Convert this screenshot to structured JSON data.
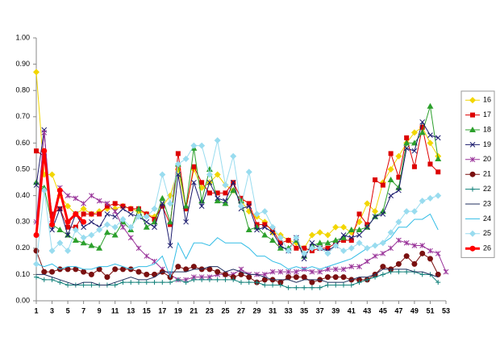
{
  "chart_data": {
    "type": "line",
    "x": [
      1,
      2,
      3,
      4,
      5,
      6,
      7,
      8,
      9,
      10,
      11,
      12,
      13,
      14,
      15,
      16,
      17,
      18,
      19,
      20,
      21,
      22,
      23,
      24,
      25,
      26,
      27,
      28,
      29,
      30,
      31,
      32,
      33,
      34,
      35,
      36,
      37,
      38,
      39,
      40,
      41,
      42,
      43,
      44,
      45,
      46,
      47,
      48,
      49,
      50,
      51,
      52,
      53
    ],
    "xlim": [
      1,
      53
    ],
    "xticks": [
      1,
      3,
      5,
      7,
      9,
      11,
      13,
      15,
      17,
      19,
      21,
      23,
      25,
      27,
      29,
      31,
      33,
      35,
      37,
      39,
      41,
      43,
      45,
      47,
      49,
      51,
      53
    ],
    "ylim": [
      0,
      1
    ],
    "yticks": [
      {
        "value": 0,
        "label": "0.00"
      },
      {
        "value": 0.1,
        "label": "0.10"
      },
      {
        "value": 0.2,
        "label": "0.20"
      },
      {
        "value": 0.3,
        "label": "0.30"
      },
      {
        "value": 0.4,
        "label": "0.40"
      },
      {
        "value": 0.5,
        "label": "0.50"
      },
      {
        "value": 0.6,
        "label": "0.60"
      },
      {
        "value": 0.7,
        "label": "0.70"
      },
      {
        "value": 0.8,
        "label": "0.80"
      },
      {
        "value": 0.9,
        "label": "0.90"
      },
      {
        "value": 1,
        "label": "1.00"
      }
    ],
    "legend": "right",
    "series": [
      {
        "name": "16",
        "color": "#f2d600",
        "marker": "diamond",
        "values": [
          0.87,
          0.48,
          0.48,
          0.4,
          0.36,
          0.33,
          0.35,
          0.33,
          0.34,
          0.35,
          0.35,
          0.36,
          0.35,
          0.34,
          0.33,
          0.32,
          0.36,
          0.4,
          0.5,
          0.35,
          0.5,
          0.43,
          0.45,
          0.48,
          0.44,
          0.42,
          0.38,
          0.34,
          0.32,
          0.3,
          0.26,
          0.25,
          0.23,
          0.22,
          0.2,
          0.25,
          0.26,
          0.25,
          0.28,
          0.28,
          0.26,
          0.3,
          0.37,
          0.34,
          0.45,
          0.5,
          0.55,
          0.6,
          0.64,
          0.66,
          0.6,
          0.55,
          null
        ]
      },
      {
        "name": "17",
        "color": "#dd0000",
        "marker": "square",
        "values": [
          0.57,
          0.55,
          0.33,
          0.35,
          0.28,
          0.28,
          0.33,
          0.33,
          0.33,
          0.36,
          0.37,
          0.36,
          0.35,
          0.35,
          0.33,
          0.31,
          0.36,
          0.29,
          0.56,
          0.35,
          0.51,
          0.45,
          0.41,
          0.41,
          0.41,
          0.45,
          0.39,
          0.37,
          0.29,
          0.29,
          0.27,
          0.22,
          0.23,
          0.2,
          0.2,
          0.19,
          0.2,
          0.2,
          0.22,
          0.23,
          0.23,
          0.33,
          0.29,
          0.46,
          0.44,
          0.56,
          0.47,
          0.62,
          0.51,
          0.66,
          0.52,
          0.49,
          null
        ]
      },
      {
        "name": "18",
        "color": "#2ca02c",
        "marker": "triangle",
        "values": [
          0.45,
          0.43,
          0.29,
          0.27,
          0.25,
          0.23,
          0.22,
          0.21,
          0.2,
          0.26,
          0.25,
          0.3,
          0.27,
          0.35,
          0.28,
          0.3,
          0.39,
          0.3,
          0.52,
          0.36,
          0.58,
          0.38,
          0.5,
          0.38,
          0.37,
          0.42,
          0.38,
          0.27,
          0.28,
          0.25,
          0.23,
          0.2,
          0.2,
          0.23,
          0.17,
          0.21,
          0.22,
          0.22,
          0.23,
          0.24,
          0.27,
          0.27,
          0.28,
          0.32,
          0.34,
          0.46,
          0.43,
          0.6,
          0.6,
          0.64,
          0.74,
          0.54,
          null
        ]
      },
      {
        "name": "19",
        "color": "#1c1c6e",
        "marker": "x",
        "values": [
          0.44,
          0.65,
          0.27,
          0.35,
          0.25,
          0.33,
          0.28,
          0.3,
          0.28,
          0.33,
          0.32,
          0.35,
          0.33,
          0.32,
          0.3,
          0.28,
          0.37,
          0.21,
          0.48,
          0.3,
          0.45,
          0.36,
          0.45,
          0.39,
          0.38,
          0.45,
          0.35,
          0.36,
          0.27,
          0.28,
          0.26,
          0.21,
          0.19,
          0.24,
          0.16,
          0.22,
          0.2,
          0.19,
          0.21,
          0.25,
          0.24,
          0.25,
          0.28,
          0.32,
          0.33,
          0.4,
          0.42,
          0.58,
          0.57,
          0.68,
          0.63,
          0.62,
          null
        ]
      },
      {
        "name": "20",
        "color": "#993399",
        "marker": "asterisk",
        "values": [
          0.3,
          0.64,
          0.31,
          0.43,
          0.4,
          0.39,
          0.37,
          0.4,
          0.38,
          0.37,
          0.34,
          0.28,
          0.24,
          0.2,
          0.17,
          0.15,
          0.12,
          0.1,
          0.08,
          0.08,
          0.09,
          0.09,
          0.09,
          0.1,
          0.1,
          0.1,
          0.12,
          0.1,
          0.1,
          0.1,
          0.11,
          0.11,
          0.11,
          0.11,
          0.12,
          0.11,
          0.11,
          0.12,
          0.12,
          0.12,
          0.13,
          0.13,
          0.15,
          0.17,
          0.18,
          0.2,
          0.23,
          0.22,
          0.21,
          0.21,
          0.19,
          0.18,
          0.11
        ]
      },
      {
        "name": "21",
        "color": "#7a1010",
        "marker": "circle",
        "values": [
          0.19,
          0.11,
          0.11,
          0.12,
          0.12,
          0.12,
          0.11,
          0.1,
          0.12,
          0.09,
          0.12,
          0.12,
          0.12,
          0.11,
          0.1,
          0.1,
          0.11,
          0.09,
          0.13,
          0.12,
          0.13,
          0.12,
          0.12,
          0.11,
          0.1,
          0.09,
          0.1,
          0.09,
          0.07,
          0.08,
          0.08,
          0.07,
          0.09,
          0.09,
          0.09,
          0.07,
          0.08,
          0.09,
          0.09,
          0.09,
          0.08,
          0.08,
          0.08,
          0.1,
          0.13,
          0.12,
          0.14,
          0.17,
          0.14,
          0.18,
          0.16,
          0.1,
          null
        ]
      },
      {
        "name": "22",
        "color": "#11807a",
        "marker": "plus",
        "values": [
          0.09,
          0.08,
          0.08,
          0.07,
          0.06,
          0.06,
          0.06,
          0.06,
          0.06,
          0.06,
          0.06,
          0.07,
          0.07,
          0.07,
          0.07,
          0.07,
          0.07,
          0.07,
          0.08,
          0.07,
          0.08,
          0.08,
          0.08,
          0.08,
          0.08,
          0.08,
          0.07,
          0.07,
          0.07,
          0.06,
          0.06,
          0.06,
          0.05,
          0.05,
          0.05,
          0.05,
          0.05,
          0.06,
          0.06,
          0.06,
          0.06,
          0.07,
          0.08,
          0.09,
          0.1,
          0.11,
          0.11,
          0.11,
          0.11,
          0.1,
          0.1,
          0.07,
          null
        ]
      },
      {
        "name": "23",
        "color": "#1f2f5e",
        "marker": "none",
        "values": [
          0.1,
          0.1,
          0.09,
          0.08,
          0.07,
          0.06,
          0.07,
          0.07,
          0.06,
          0.06,
          0.07,
          0.08,
          0.09,
          0.08,
          0.08,
          0.09,
          0.11,
          0.11,
          0.11,
          0.11,
          0.12,
          0.12,
          0.13,
          0.13,
          0.11,
          0.12,
          0.11,
          0.1,
          0.1,
          0.09,
          0.08,
          0.08,
          0.08,
          0.07,
          0.08,
          0.08,
          0.08,
          0.07,
          0.07,
          0.07,
          0.08,
          0.09,
          0.09,
          0.1,
          0.12,
          0.12,
          0.12,
          0.12,
          0.11,
          0.11,
          0.1,
          0.09,
          null
        ]
      },
      {
        "name": "24",
        "color": "#33bde6",
        "marker": "none",
        "values": [
          0.14,
          0.13,
          0.14,
          0.12,
          0.13,
          0.13,
          0.12,
          0.12,
          0.13,
          0.13,
          0.14,
          0.13,
          0.12,
          0.13,
          0.13,
          0.14,
          0.17,
          0.09,
          0.22,
          0.16,
          0.22,
          0.22,
          0.21,
          0.24,
          0.22,
          0.22,
          0.22,
          0.2,
          0.17,
          0.17,
          0.15,
          0.14,
          0.12,
          0.13,
          0.12,
          0.13,
          0.12,
          0.13,
          0.14,
          0.15,
          0.16,
          0.18,
          0.2,
          0.21,
          0.22,
          0.24,
          0.28,
          0.28,
          0.31,
          0.31,
          0.33,
          0.27,
          null
        ]
      },
      {
        "name": "25",
        "color": "#99dcef",
        "marker": "diamond",
        "values": [
          0.14,
          0.42,
          0.19,
          0.22,
          0.19,
          0.27,
          0.24,
          0.25,
          0.27,
          0.29,
          0.28,
          0.31,
          0.28,
          0.32,
          0.32,
          0.35,
          0.48,
          0.37,
          0.52,
          0.54,
          0.59,
          0.59,
          0.48,
          0.61,
          0.44,
          0.55,
          0.36,
          0.49,
          0.33,
          0.34,
          0.28,
          0.24,
          0.19,
          0.24,
          0.18,
          0.2,
          0.2,
          0.18,
          0.21,
          0.19,
          0.2,
          0.22,
          0.2,
          0.21,
          0.22,
          0.26,
          0.3,
          0.34,
          0.34,
          0.38,
          0.39,
          0.4,
          null
        ]
      },
      {
        "name": "26",
        "color": "#ff0000",
        "marker": "circle",
        "width": 3,
        "values": [
          0.25,
          0.57,
          0.29,
          0.42,
          0.3,
          0.33,
          0.3,
          null,
          null,
          null,
          null,
          null,
          null,
          null,
          null,
          null,
          null,
          null,
          null,
          null,
          null,
          null,
          null,
          null,
          null,
          null,
          null,
          null,
          null,
          null,
          null,
          null,
          null,
          null,
          null,
          null,
          null,
          null,
          null,
          null,
          null,
          null,
          null,
          null,
          null,
          null,
          null,
          null,
          null,
          null,
          null,
          null,
          null
        ]
      }
    ]
  }
}
